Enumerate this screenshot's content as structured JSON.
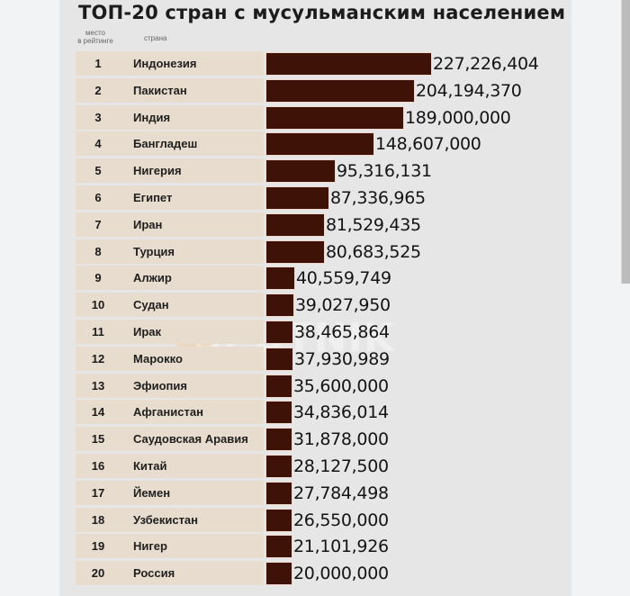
{
  "chart_data": {
    "type": "bar",
    "orientation": "horizontal",
    "title": "ТОП-20 стран с мусульманским населением",
    "column_headers": [
      "место в рейтинге",
      "страна"
    ],
    "categories": [
      "Индонезия",
      "Пакистан",
      "Индия",
      "Бангладеш",
      "Нигерия",
      "Египет",
      "Иран",
      "Турция",
      "Алжир",
      "Судан",
      "Ирак",
      "Марокко",
      "Эфиопия",
      "Афганистан",
      "Саудовская Аравия",
      "Китай",
      "Йемен",
      "Узбекистан",
      "Нигер",
      "Россия"
    ],
    "ranks": [
      1,
      2,
      3,
      4,
      5,
      6,
      7,
      8,
      9,
      10,
      11,
      12,
      13,
      14,
      15,
      16,
      17,
      18,
      19,
      20
    ],
    "values": [
      227226404,
      204194370,
      189000000,
      148607000,
      95316131,
      87336965,
      81529435,
      80683525,
      40559749,
      39027950,
      38465864,
      37930989,
      35600000,
      34836014,
      31878000,
      28127500,
      27784498,
      26550000,
      21101926,
      20000000
    ],
    "value_labels": [
      "227,226,404",
      "204,194,370",
      "189,000,000",
      "148,607,000",
      "95,316,131",
      "87,336,965",
      "81,529,435",
      "80,683,525",
      "40,559,749",
      "39,027,950",
      "38,465,864",
      "37,930,989",
      "35,600,000",
      "34,836,014",
      "31,878,000",
      "28,127,500",
      "27,784,498",
      "26,550,000",
      "21,101,926",
      "20,000,000"
    ],
    "bar_color": "#3e1206",
    "row_band_color": "#e7dccd",
    "grid": false,
    "legend": null,
    "watermark": "SPUTNIK"
  },
  "header": {
    "title": "ТОП-20 стран с мусульманским населением",
    "rank_label_line1": "место",
    "rank_label_line2": "в рейтинге",
    "country_label": "страна"
  },
  "watermark": "SPUTNIK"
}
